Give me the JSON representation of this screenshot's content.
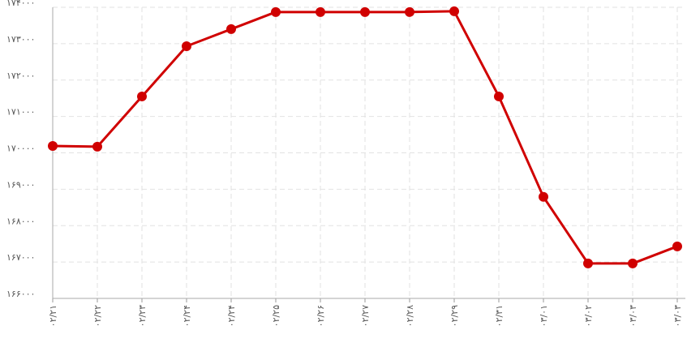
{
  "chart_data": {
    "type": "line",
    "categories": [
      "۰۲/۲۱",
      "۰۲/۲۲",
      "۰۲/۲۳",
      "۰۲/۲۴",
      "۰۲/۲۴",
      "۰۲/۲۵",
      "۰۲/۲۶",
      "۰۲/۲۷",
      "۰۲/۲۸",
      "۰۲/۲۹",
      "۰۲/۳۱",
      "۰۳/۰۱",
      "۰۳/۰۲",
      "۰۳/۰۳",
      "۰۳/۰۳"
    ],
    "series": [
      {
        "color": "#d00000",
        "values": [
          170190,
          170170,
          171550,
          172930,
          173400,
          173870,
          173870,
          173870,
          173870,
          173890,
          171550,
          168790,
          166960,
          166960,
          167430
        ]
      }
    ],
    "ylim": [
      166000,
      174000
    ],
    "yticks": [
      {
        "value": 166000,
        "label": "۱۶۶۰۰۰"
      },
      {
        "value": 167000,
        "label": "۱۶۷۰۰۰"
      },
      {
        "value": 168000,
        "label": "۱۶۸۰۰۰"
      },
      {
        "value": 169000,
        "label": "۱۶۹۰۰۰"
      },
      {
        "value": 170000,
        "label": "۱۷۰۰۰۰"
      },
      {
        "value": 171000,
        "label": "۱۷۱۰۰۰"
      },
      {
        "value": 172000,
        "label": "۱۷۲۰۰۰"
      },
      {
        "value": 173000,
        "label": "۱۷۳۰۰۰"
      },
      {
        "value": 174000,
        "label": "۱۷۴۰۰۰"
      }
    ],
    "grid": true
  }
}
